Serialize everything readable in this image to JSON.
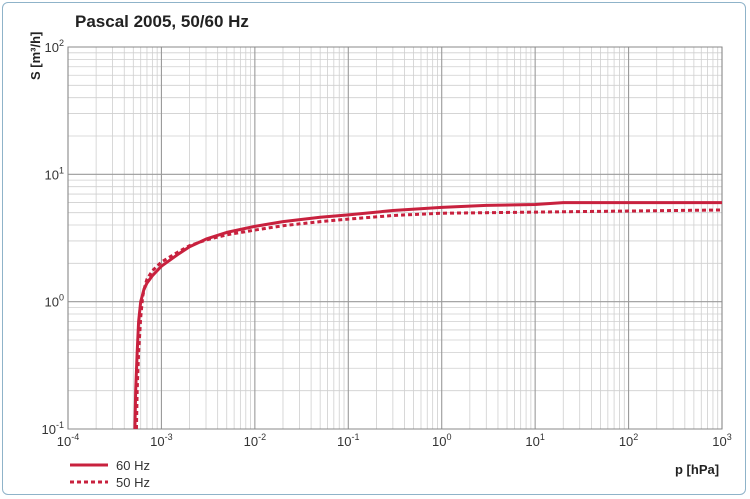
{
  "chart_data": {
    "type": "line",
    "title": "Pascal 2005, 50/60 Hz",
    "xlabel": "p [hPa]",
    "ylabel": "S [m³/h]",
    "x_scale": "log",
    "y_scale": "log",
    "xlim": [
      0.0001,
      1000
    ],
    "ylim": [
      0.1,
      100
    ],
    "grid": true,
    "legend_position": "bottom-left",
    "x_ticks": [
      {
        "base": "10",
        "exp": "-4",
        "value": 0.0001
      },
      {
        "base": "10",
        "exp": "-3",
        "value": 0.001
      },
      {
        "base": "10",
        "exp": "-2",
        "value": 0.01
      },
      {
        "base": "10",
        "exp": "-1",
        "value": 0.1
      },
      {
        "base": "10",
        "exp": "0",
        "value": 1
      },
      {
        "base": "10",
        "exp": "1",
        "value": 10
      },
      {
        "base": "10",
        "exp": "2",
        "value": 100
      },
      {
        "base": "10",
        "exp": "3",
        "value": 1000
      }
    ],
    "y_ticks": [
      {
        "base": "10",
        "exp": "-1",
        "value": 0.1
      },
      {
        "base": "10",
        "exp": "0",
        "value": 1
      },
      {
        "base": "10",
        "exp": "1",
        "value": 10
      },
      {
        "base": "10",
        "exp": "2",
        "value": 100
      }
    ],
    "series": [
      {
        "name": "60 Hz",
        "color": "#c8213e",
        "style": "solid",
        "x": [
          0.00052,
          0.00053,
          0.00055,
          0.00057,
          0.0006,
          0.00065,
          0.0007,
          0.0008,
          0.001,
          0.0015,
          0.002,
          0.003,
          0.005,
          0.01,
          0.02,
          0.05,
          0.1,
          0.3,
          1,
          3,
          10,
          20,
          100,
          1000
        ],
        "y": [
          0.1,
          0.2,
          0.4,
          0.7,
          1.0,
          1.25,
          1.4,
          1.6,
          1.9,
          2.35,
          2.7,
          3.1,
          3.5,
          3.9,
          4.25,
          4.6,
          4.8,
          5.2,
          5.5,
          5.7,
          5.8,
          6.0,
          6.0,
          6.0
        ]
      },
      {
        "name": "50 Hz",
        "color": "#c8213e",
        "style": "dashed",
        "x": [
          0.00054,
          0.00055,
          0.00057,
          0.0006,
          0.00063,
          0.00067,
          0.0007,
          0.0008,
          0.001,
          0.0015,
          0.002,
          0.003,
          0.005,
          0.01,
          0.02,
          0.05,
          0.1,
          0.3,
          1,
          10,
          100,
          1000
        ],
        "y": [
          0.1,
          0.2,
          0.4,
          0.75,
          1.1,
          1.35,
          1.5,
          1.75,
          2.05,
          2.45,
          2.75,
          3.05,
          3.35,
          3.65,
          3.95,
          4.25,
          4.45,
          4.75,
          4.95,
          5.05,
          5.15,
          5.25
        ]
      }
    ]
  }
}
